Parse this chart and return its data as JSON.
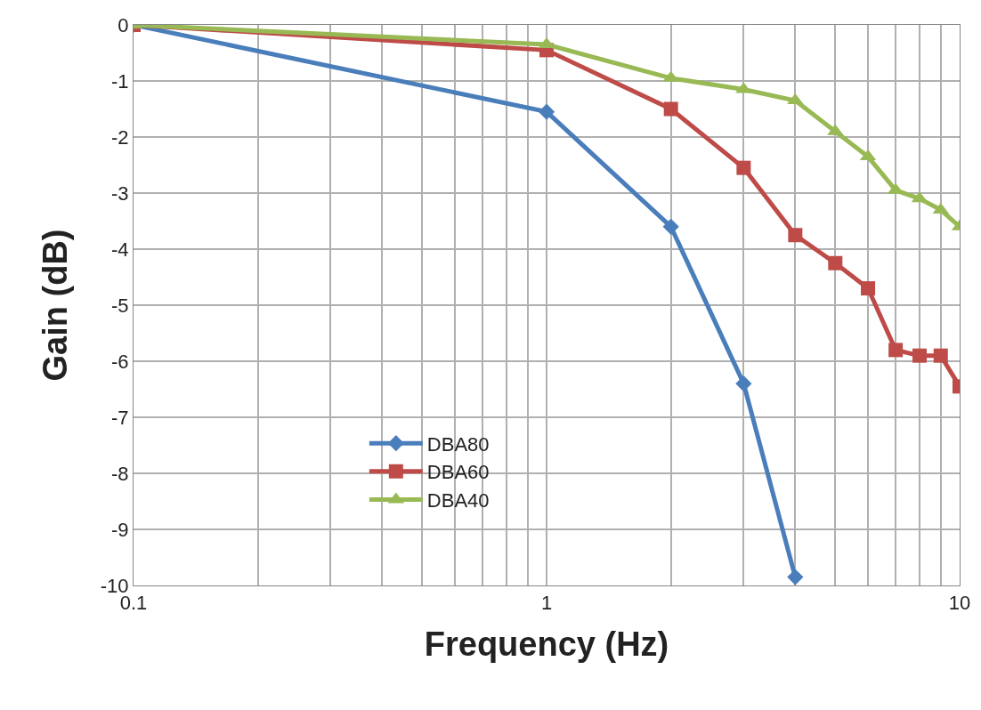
{
  "chart_data": {
    "type": "line",
    "xlabel": "Frequency (Hz)",
    "ylabel": "Gain (dB)",
    "log": "x",
    "grid": true,
    "legend": "bottom left",
    "line_style": "solid",
    "xlim": [
      0.1,
      10
    ],
    "xticks": [
      0.1,
      {
        "value": 0.2,
        "label": null
      },
      {
        "value": 0.3,
        "label": null
      },
      {
        "value": 0.4,
        "label": null
      },
      {
        "value": 0.5,
        "label": null
      },
      {
        "value": 0.6,
        "label": null
      },
      {
        "value": 0.7,
        "label": null
      },
      {
        "value": 0.8,
        "label": null
      },
      {
        "value": 0.9,
        "label": null
      },
      1,
      {
        "value": 2,
        "label": null
      },
      {
        "value": 3,
        "label": null
      },
      {
        "value": 4,
        "label": null
      },
      {
        "value": 5,
        "label": null
      },
      {
        "value": 6,
        "label": null
      },
      {
        "value": 7,
        "label": null
      },
      {
        "value": 8,
        "label": null
      },
      {
        "value": 9,
        "label": null
      },
      10
    ],
    "ylim": [
      -10,
      0
    ],
    "yticks": [
      -10,
      -9,
      -8,
      -7,
      -6,
      -5,
      -4,
      -3,
      -2,
      -1,
      0
    ],
    "series": [
      {
        "name": "DBA80",
        "color": "#4a7ebb",
        "marker": "diamond",
        "x": [
          0.1,
          1,
          2,
          3,
          4
        ],
        "values": [
          0,
          -1.55,
          -3.6,
          -6.4,
          -9.85
        ]
      },
      {
        "name": "DBA60",
        "color": "#be4b48",
        "marker": "square",
        "x": [
          0.1,
          1,
          2,
          3,
          4,
          5,
          6,
          7,
          8,
          9,
          10
        ],
        "values": [
          0,
          -0.45,
          -1.5,
          -2.55,
          -3.75,
          -4.25,
          -4.7,
          -5.8,
          -5.9,
          -5.9,
          -6.45
        ]
      },
      {
        "name": "DBA40",
        "color": "#98b954",
        "marker": "triangle",
        "x": [
          0.1,
          1,
          2,
          3,
          4,
          5,
          6,
          7,
          8,
          9,
          10
        ],
        "values": [
          0,
          -0.35,
          -0.95,
          -1.15,
          -1.35,
          -1.9,
          -2.35,
          -2.95,
          -3.1,
          -3.3,
          -3.6
        ]
      }
    ]
  }
}
